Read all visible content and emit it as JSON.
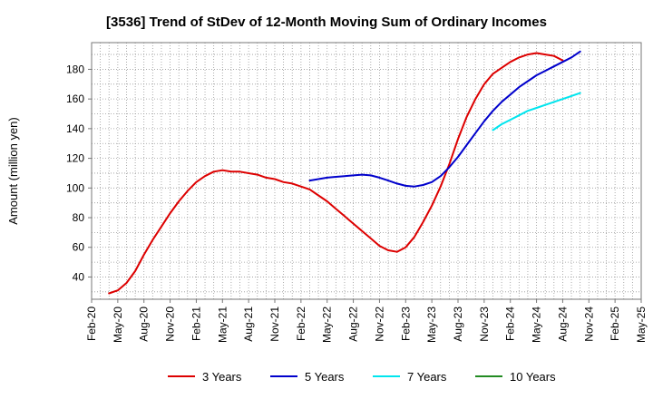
{
  "title": "[3536]  Trend of StDev of 12-Month Moving Sum of Ordinary Incomes",
  "chart_data": {
    "type": "line",
    "title": "[3536]  Trend of StDev of 12-Month Moving Sum of Ordinary Incomes",
    "xlabel": "",
    "ylabel": "Amount (million yen)",
    "x_ticks": [
      "Feb-20",
      "May-20",
      "Aug-20",
      "Nov-20",
      "Feb-21",
      "May-21",
      "Aug-21",
      "Nov-21",
      "Feb-22",
      "May-22",
      "Aug-22",
      "Nov-22",
      "Feb-23",
      "May-23",
      "Aug-23",
      "Nov-23",
      "Feb-24",
      "May-24",
      "Aug-24",
      "Nov-24",
      "Feb-25",
      "May-25"
    ],
    "y_ticks": [
      40,
      60,
      80,
      100,
      120,
      140,
      160,
      180
    ],
    "ylim": [
      25,
      198
    ],
    "grid": true,
    "legend_position": "bottom",
    "series": [
      {
        "name": "3 Years",
        "color": "#dd0000",
        "points": [
          [
            "Apr-20",
            29
          ],
          [
            "May-20",
            31
          ],
          [
            "Jun-20",
            36
          ],
          [
            "Jul-20",
            44
          ],
          [
            "Aug-20",
            55
          ],
          [
            "Sep-20",
            65
          ],
          [
            "Oct-20",
            74
          ],
          [
            "Nov-20",
            83
          ],
          [
            "Dec-20",
            91
          ],
          [
            "Jan-21",
            98
          ],
          [
            "Feb-21",
            104
          ],
          [
            "Mar-21",
            108
          ],
          [
            "Apr-21",
            111
          ],
          [
            "May-21",
            112
          ],
          [
            "Jun-21",
            111
          ],
          [
            "Jul-21",
            111
          ],
          [
            "Aug-21",
            110
          ],
          [
            "Sep-21",
            109
          ],
          [
            "Oct-21",
            107
          ],
          [
            "Nov-21",
            106
          ],
          [
            "Dec-21",
            104
          ],
          [
            "Jan-22",
            103
          ],
          [
            "Feb-22",
            101
          ],
          [
            "Mar-22",
            99
          ],
          [
            "Apr-22",
            95
          ],
          [
            "May-22",
            91
          ],
          [
            "Jun-22",
            86
          ],
          [
            "Jul-22",
            81
          ],
          [
            "Aug-22",
            76
          ],
          [
            "Sep-22",
            71
          ],
          [
            "Oct-22",
            66
          ],
          [
            "Nov-22",
            61
          ],
          [
            "Dec-22",
            58
          ],
          [
            "Jan-23",
            57
          ],
          [
            "Feb-23",
            60
          ],
          [
            "Mar-23",
            67
          ],
          [
            "Apr-23",
            77
          ],
          [
            "May-23",
            88
          ],
          [
            "Jun-23",
            101
          ],
          [
            "Jul-23",
            116
          ],
          [
            "Aug-23",
            133
          ],
          [
            "Sep-23",
            148
          ],
          [
            "Oct-23",
            160
          ],
          [
            "Nov-23",
            170
          ],
          [
            "Dec-23",
            177
          ],
          [
            "Jan-24",
            181
          ],
          [
            "Feb-24",
            185
          ],
          [
            "Mar-24",
            188
          ],
          [
            "Apr-24",
            190
          ],
          [
            "May-24",
            191
          ],
          [
            "Jun-24",
            190
          ],
          [
            "Jul-24",
            189
          ],
          [
            "Aug-24",
            186
          ]
        ]
      },
      {
        "name": "5 Years",
        "color": "#0000cc",
        "points": [
          [
            "Mar-22",
            105
          ],
          [
            "Apr-22",
            106
          ],
          [
            "May-22",
            107
          ],
          [
            "Jun-22",
            107.5
          ],
          [
            "Jul-22",
            108
          ],
          [
            "Aug-22",
            108.5
          ],
          [
            "Sep-22",
            109
          ],
          [
            "Oct-22",
            108.5
          ],
          [
            "Nov-22",
            107
          ],
          [
            "Dec-22",
            105
          ],
          [
            "Jan-23",
            103
          ],
          [
            "Feb-23",
            101.5
          ],
          [
            "Mar-23",
            101
          ],
          [
            "Apr-23",
            102
          ],
          [
            "May-23",
            104
          ],
          [
            "Jun-23",
            108
          ],
          [
            "Jul-23",
            114
          ],
          [
            "Aug-23",
            121
          ],
          [
            "Sep-23",
            129
          ],
          [
            "Oct-23",
            137
          ],
          [
            "Nov-23",
            145
          ],
          [
            "Dec-23",
            152
          ],
          [
            "Jan-24",
            158
          ],
          [
            "Feb-24",
            163
          ],
          [
            "Mar-24",
            168
          ],
          [
            "Apr-24",
            172
          ],
          [
            "May-24",
            176
          ],
          [
            "Jun-24",
            179
          ],
          [
            "Jul-24",
            182
          ],
          [
            "Aug-24",
            185
          ],
          [
            "Sep-24",
            188
          ],
          [
            "Oct-24",
            192
          ]
        ]
      },
      {
        "name": "7 Years",
        "color": "#00e5ee",
        "points": [
          [
            "Dec-23",
            139
          ],
          [
            "Jan-24",
            143
          ],
          [
            "Feb-24",
            146
          ],
          [
            "Mar-24",
            149
          ],
          [
            "Apr-24",
            152
          ],
          [
            "May-24",
            154
          ],
          [
            "Jun-24",
            156
          ],
          [
            "Jul-24",
            158
          ],
          [
            "Aug-24",
            160
          ],
          [
            "Sep-24",
            162
          ],
          [
            "Oct-24",
            164
          ]
        ]
      },
      {
        "name": "10 Years",
        "color": "#228b22",
        "points": []
      }
    ]
  }
}
